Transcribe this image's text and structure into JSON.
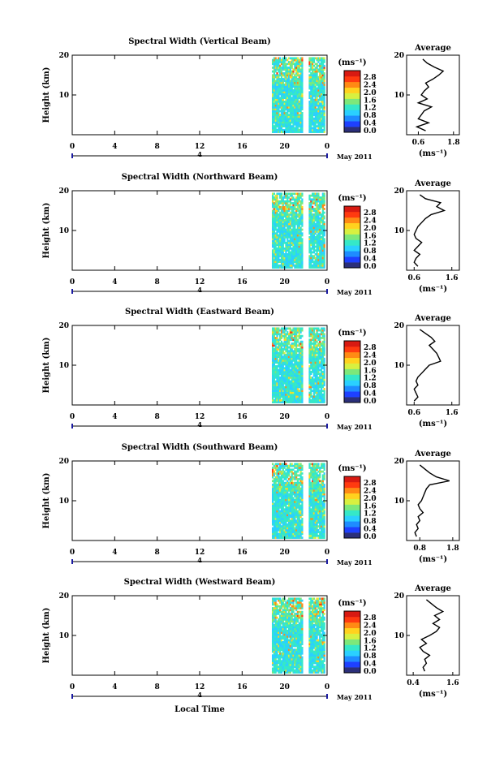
{
  "page": {
    "month_label": "May 2011",
    "time_axis_label": "Local Time",
    "height_axis_label": "Height (km)",
    "colorbar_unit": "(ms⁻¹)",
    "average_title": "Average",
    "average_unit": "(ms⁻¹)",
    "colormap": [
      "#2b2f7a",
      "#1e40ff",
      "#1e8cff",
      "#2ad0ff",
      "#35e8c8",
      "#7de87a",
      "#d8f040",
      "#ffd21e",
      "#ff8a14",
      "#ff3a10",
      "#d81a12"
    ]
  },
  "chart_data": [
    {
      "type": "heatmap",
      "title": "Spectral Width (Vertical Beam)",
      "xlabel": "Local Time",
      "ylabel": "Height (km)",
      "x_ticks": [
        "0",
        "4",
        "8",
        "12",
        "16",
        "20",
        "0"
      ],
      "x_sub_label": "4",
      "y_ticks": [
        "10",
        "20"
      ],
      "xlim": [
        0,
        24
      ],
      "ylim": [
        0,
        20
      ],
      "data_x_range": [
        18.8,
        23.8
      ],
      "gap_x": [
        21.8,
        22.2
      ],
      "colorbar_ticks": [
        "2.8",
        "2.4",
        "2.0",
        "1.6",
        "1.2",
        "0.8",
        "0.4",
        "0.0"
      ],
      "average_x_ticks": [
        "0.6",
        "1.8"
      ],
      "average_xlim": [
        0.2,
        2.0
      ],
      "average_profile": {
        "height_km": [
          1,
          2,
          3,
          4,
          5,
          6,
          7,
          8,
          9,
          10,
          11,
          12,
          13,
          14,
          15,
          16,
          17,
          18,
          19
        ],
        "width": [
          0.85,
          0.55,
          0.95,
          0.6,
          0.7,
          0.8,
          1.05,
          0.6,
          0.9,
          0.7,
          0.8,
          0.95,
          0.85,
          1.1,
          1.3,
          1.45,
          1.15,
          0.9,
          0.75
        ]
      }
    },
    {
      "type": "heatmap",
      "title": "Spectral Width (Northward Beam)",
      "xlabel": "Local Time",
      "ylabel": "Height (km)",
      "x_ticks": [
        "0",
        "4",
        "8",
        "12",
        "16",
        "20",
        "0"
      ],
      "x_sub_label": "4",
      "y_ticks": [
        "10",
        "20"
      ],
      "xlim": [
        0,
        24
      ],
      "ylim": [
        0,
        20
      ],
      "data_x_range": [
        18.8,
        23.8
      ],
      "gap_x": [
        21.8,
        22.2
      ],
      "colorbar_ticks": [
        "2.8",
        "2.4",
        "2.0",
        "1.6",
        "1.2",
        "0.8",
        "0.4",
        "0.0"
      ],
      "average_x_ticks": [
        "0.6",
        "1.6"
      ],
      "average_xlim": [
        0.4,
        1.8
      ],
      "average_profile": {
        "height_km": [
          1,
          2,
          3,
          4,
          5,
          6,
          7,
          8,
          9,
          10,
          11,
          12,
          13,
          14,
          15,
          16,
          17,
          18,
          19
        ],
        "width": [
          0.7,
          0.6,
          0.65,
          0.75,
          0.6,
          0.7,
          0.8,
          0.65,
          0.6,
          0.65,
          0.7,
          0.8,
          0.9,
          1.05,
          1.4,
          1.2,
          1.3,
          0.9,
          0.75
        ]
      }
    },
    {
      "type": "heatmap",
      "title": "Spectral Width (Eastward Beam)",
      "xlabel": "Local Time",
      "ylabel": "Height (km)",
      "x_ticks": [
        "0",
        "4",
        "8",
        "12",
        "16",
        "20",
        "0"
      ],
      "x_sub_label": "4",
      "y_ticks": [
        "10",
        "20"
      ],
      "xlim": [
        0,
        24
      ],
      "ylim": [
        0,
        20
      ],
      "data_x_range": [
        18.8,
        23.8
      ],
      "gap_x": [
        21.8,
        22.2
      ],
      "colorbar_ticks": [
        "2.8",
        "2.4",
        "2.0",
        "1.6",
        "1.2",
        "0.8",
        "0.4",
        "0.0"
      ],
      "average_x_ticks": [
        "0.6",
        "1.6"
      ],
      "average_xlim": [
        0.4,
        1.8
      ],
      "average_profile": {
        "height_km": [
          1,
          2,
          3,
          4,
          5,
          6,
          7,
          8,
          9,
          10,
          11,
          12,
          13,
          14,
          15,
          16,
          17,
          18,
          19
        ],
        "width": [
          0.6,
          0.7,
          0.65,
          0.6,
          0.7,
          0.65,
          0.7,
          0.8,
          0.9,
          1.0,
          1.3,
          1.25,
          1.2,
          1.1,
          1.0,
          1.15,
          1.05,
          0.9,
          0.75
        ]
      }
    },
    {
      "type": "heatmap",
      "title": "Spectral Width (Southward Beam)",
      "xlabel": "Local Time",
      "ylabel": "Height (km)",
      "x_ticks": [
        "0",
        "4",
        "8",
        "12",
        "16",
        "20",
        "0"
      ],
      "x_sub_label": "4",
      "y_ticks": [
        "10",
        "20"
      ],
      "xlim": [
        0,
        24
      ],
      "ylim": [
        0,
        20
      ],
      "data_x_range": [
        18.8,
        23.8
      ],
      "gap_x": [
        21.8,
        22.2
      ],
      "colorbar_ticks": [
        "2.8",
        "2.4",
        "2.0",
        "1.6",
        "1.2",
        "0.8",
        "0.4",
        "0.0"
      ],
      "average_x_ticks": [
        "0.8",
        "1.8"
      ],
      "average_xlim": [
        0.4,
        2.0
      ],
      "average_profile": {
        "height_km": [
          1,
          2,
          3,
          4,
          5,
          6,
          7,
          8,
          9,
          10,
          11,
          12,
          13,
          14,
          15,
          16,
          17,
          18,
          19
        ],
        "width": [
          0.7,
          0.65,
          0.75,
          0.7,
          0.8,
          0.75,
          0.9,
          0.8,
          0.75,
          0.85,
          0.9,
          0.95,
          1.0,
          1.1,
          1.7,
          1.3,
          1.1,
          0.95,
          0.8
        ]
      }
    },
    {
      "type": "heatmap",
      "title": "Spectral Width (Westward Beam)",
      "xlabel": "Local Time",
      "ylabel": "Height (km)",
      "x_ticks": [
        "0",
        "4",
        "8",
        "12",
        "16",
        "20",
        "0"
      ],
      "x_sub_label": "4",
      "y_ticks": [
        "10",
        "20"
      ],
      "xlim": [
        0,
        24
      ],
      "ylim": [
        0,
        20
      ],
      "data_x_range": [
        18.8,
        23.8
      ],
      "gap_x": [
        21.8,
        22.2
      ],
      "colorbar_ticks": [
        "2.8",
        "2.4",
        "2.0",
        "1.6",
        "1.2",
        "0.8",
        "0.4",
        "0.0"
      ],
      "average_x_ticks": [
        "0.4",
        "1.6"
      ],
      "average_xlim": [
        0.2,
        1.8
      ],
      "average_profile": {
        "height_km": [
          1,
          2,
          3,
          4,
          5,
          6,
          7,
          8,
          9,
          10,
          11,
          12,
          13,
          14,
          15,
          16,
          17,
          18,
          19
        ],
        "width": [
          0.75,
          0.7,
          0.8,
          0.75,
          0.9,
          0.7,
          0.6,
          0.8,
          0.65,
          0.9,
          1.1,
          1.2,
          1.0,
          1.2,
          1.05,
          1.3,
          1.1,
          0.95,
          0.8
        ]
      }
    }
  ]
}
